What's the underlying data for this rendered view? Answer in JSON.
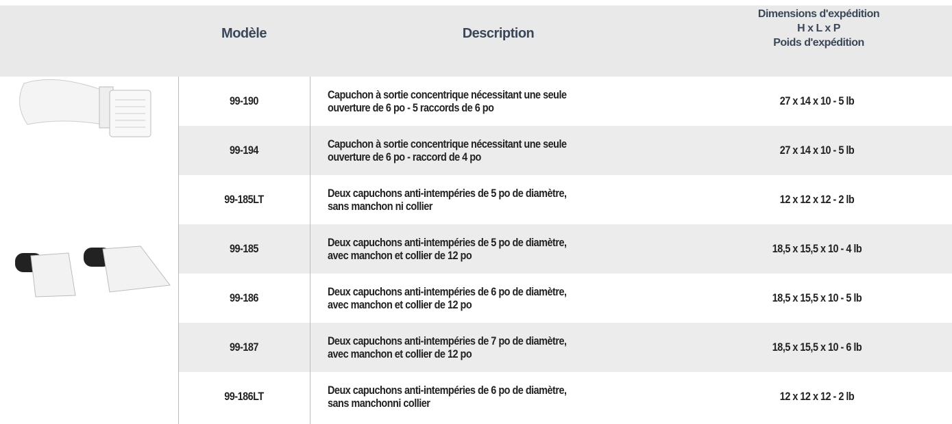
{
  "table": {
    "header": {
      "model": "Modèle",
      "description": "Description",
      "dimensions": [
        "Dimensions d'expédition",
        "H x L x P",
        "Poids d'expédition"
      ]
    },
    "rows": [
      [
        "99-190",
        [
          "Capuchon à sortie concentrique nécessitant une seule",
          "ouverture de 6 po - 5 raccords de 6 po"
        ],
        "27 x 14 x 10 - 5 lb"
      ],
      [
        "99-194",
        [
          "Capuchon à sortie concentrique nécessitant une seule",
          "ouverture de 6 po - raccord de 4 po"
        ],
        "27 x 14 x 10 - 5 lb"
      ],
      [
        "99-185LT",
        [
          "Deux capuchons anti-intempéries de 5 po de diamètre,",
          "sans manchon ni collier"
        ],
        "12 x 12 x 12 - 2 lb"
      ],
      [
        "99-185",
        [
          "Deux capuchons anti-intempéries de 5 po de diamètre,",
          "avec manchon et collier de 12 po"
        ],
        "18,5 x 15,5 x 10 - 4 lb"
      ],
      [
        "99-186",
        [
          "Deux capuchons anti-intempéries de 6 po de diamètre,",
          "avec manchon et collier de 12 po"
        ],
        "18,5 x 15,5 x 10 - 5 lb"
      ],
      [
        "99-187",
        [
          "Deux capuchons anti-intempéries de 7 po de diamètre,",
          "avec manchon et collier de 12 po"
        ],
        "18,5 x 15,5 x 10 - 6 lb"
      ],
      [
        "99-186LT",
        [
          "Deux capuchons anti-intempéries de 6 po de diamètre,",
          "sans manchonni collier"
        ],
        "12 x 12 x 12 - 2 lb"
      ]
    ]
  }
}
